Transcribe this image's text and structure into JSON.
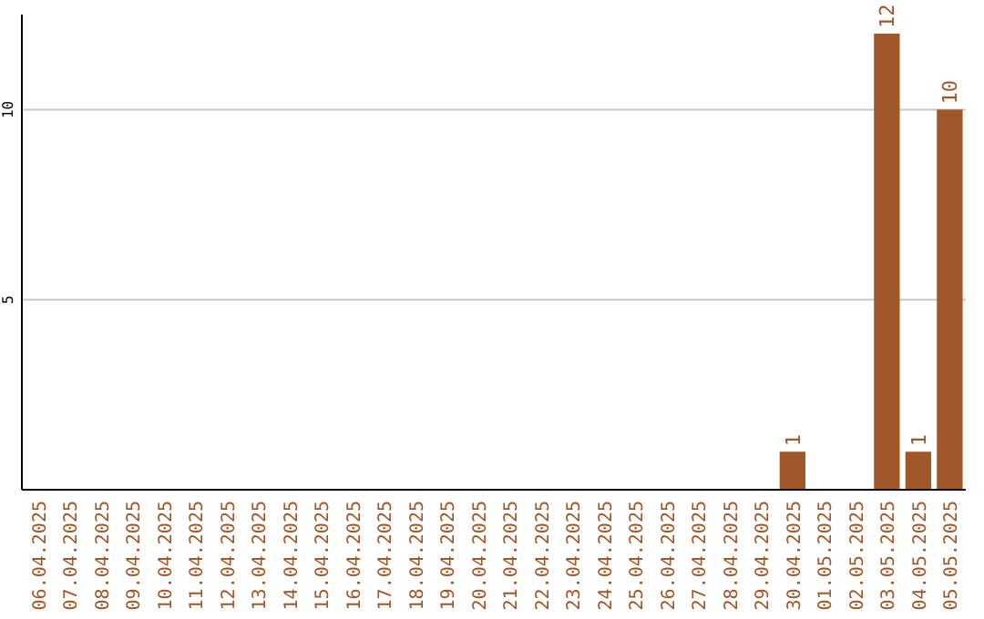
{
  "chart_data": {
    "type": "bar",
    "categories": [
      "06.04.2025",
      "07.04.2025",
      "08.04.2025",
      "09.04.2025",
      "10.04.2025",
      "11.04.2025",
      "12.04.2025",
      "13.04.2025",
      "14.04.2025",
      "15.04.2025",
      "16.04.2025",
      "17.04.2025",
      "18.04.2025",
      "19.04.2025",
      "20.04.2025",
      "21.04.2025",
      "22.04.2025",
      "23.04.2025",
      "24.04.2025",
      "25.04.2025",
      "26.04.2025",
      "27.04.2025",
      "28.04.2025",
      "29.04.2025",
      "30.04.2025",
      "01.05.2025",
      "02.05.2025",
      "03.05.2025",
      "04.05.2025",
      "05.05.2025"
    ],
    "values": [
      0,
      0,
      0,
      0,
      0,
      0,
      0,
      0,
      0,
      0,
      0,
      0,
      0,
      0,
      0,
      0,
      0,
      0,
      0,
      0,
      0,
      0,
      0,
      0,
      1,
      0,
      0,
      12,
      1,
      10
    ],
    "value_labels": [
      null,
      null,
      null,
      null,
      null,
      null,
      null,
      null,
      null,
      null,
      null,
      null,
      null,
      null,
      null,
      null,
      null,
      null,
      null,
      null,
      null,
      null,
      null,
      null,
      "1",
      null,
      null,
      "12",
      "1",
      "10"
    ],
    "color": "#a0582a",
    "ylim": [
      0,
      12.5
    ],
    "yticks": [
      5,
      10
    ],
    "grid": "y"
  }
}
